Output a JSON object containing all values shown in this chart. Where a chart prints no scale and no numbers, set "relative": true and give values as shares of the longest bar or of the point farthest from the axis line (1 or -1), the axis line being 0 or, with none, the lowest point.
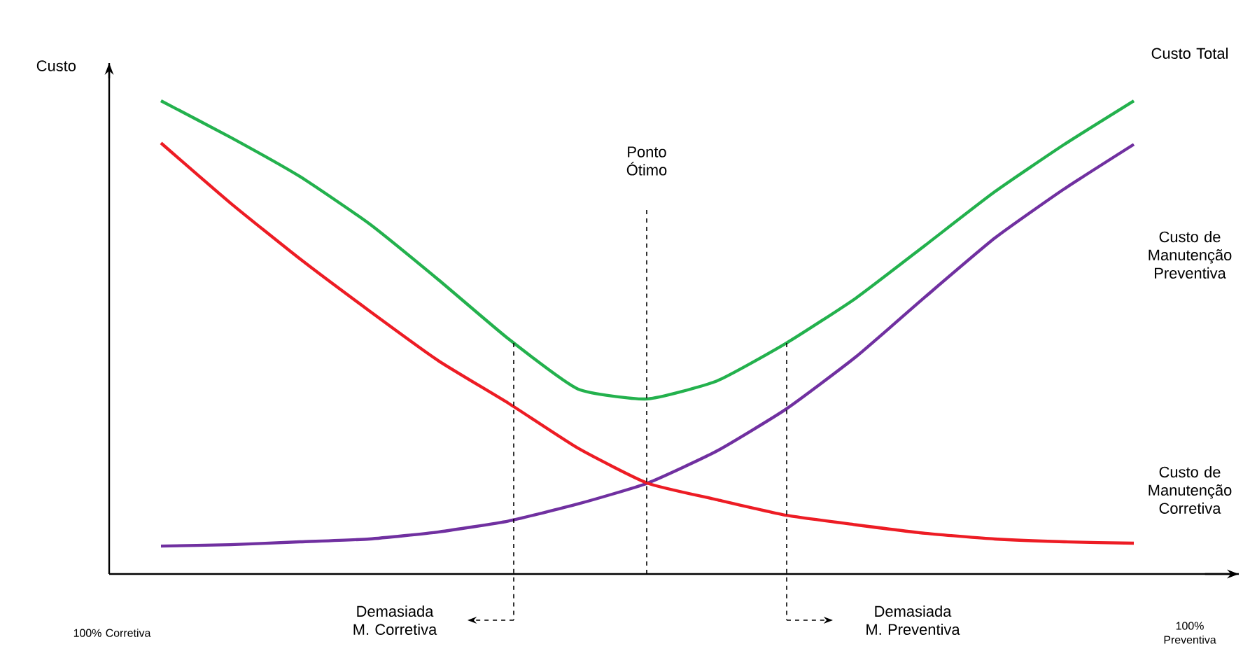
{
  "chart_data": {
    "type": "line",
    "relative": true,
    "ylabel": "Custo",
    "categories": [
      null,
      null,
      null,
      null,
      null,
      null,
      null,
      null,
      null,
      null,
      null,
      null,
      null,
      null,
      null
    ],
    "series": [
      {
        "name": "Custo Total",
        "color": "#23b14d",
        "values": [
          1.0,
          0.923,
          0.84,
          0.74,
          0.621,
          0.497,
          0.391,
          0.37,
          0.408,
          0.488,
          0.583,
          0.695,
          0.808,
          0.908,
          1.0
        ]
      },
      {
        "name": "Custo de Manutenção Preventiva",
        "color": "#7030a0",
        "values": [
          0.059,
          0.062,
          0.068,
          0.074,
          0.089,
          0.112,
          0.148,
          0.192,
          0.26,
          0.349,
          0.459,
          0.586,
          0.71,
          0.814,
          0.908
        ]
      },
      {
        "name": "Custo de Manutenção Corretiva",
        "color": "#ed1c24",
        "values": [
          0.911,
          0.784,
          0.666,
          0.556,
          0.45,
          0.361,
          0.266,
          0.192,
          0.157,
          0.124,
          0.104,
          0.086,
          0.074,
          0.068,
          0.065
        ]
      }
    ],
    "annotations": [
      "100% Corretiva",
      "100% Preventiva",
      "Ponto Ótimo",
      "Demasiada M. Corretiva",
      "Demasiada M. Preventiva"
    ]
  }
}
